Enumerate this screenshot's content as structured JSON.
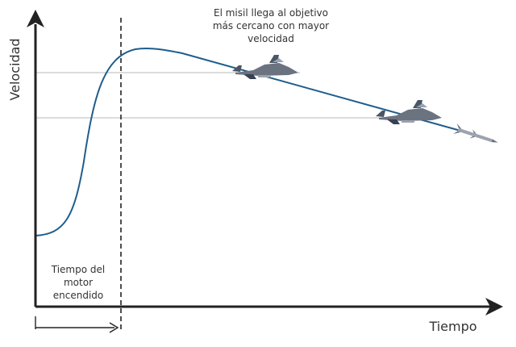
{
  "axes": {
    "y_label": "Velocidad",
    "x_label": "Tiempo"
  },
  "annotations": {
    "top_note": [
      "El misil llega al objetivo",
      "más cercano con mayor",
      "velocidad"
    ],
    "motor_note": [
      "Tiempo del",
      "motor",
      "encendido"
    ]
  },
  "icons": [
    "jet-fighter-icon",
    "jet-fighter-icon",
    "missile-icon"
  ],
  "colors": {
    "curve": "#1f5d8c",
    "axis": "#222222",
    "guide": "#c8c8c8"
  }
}
